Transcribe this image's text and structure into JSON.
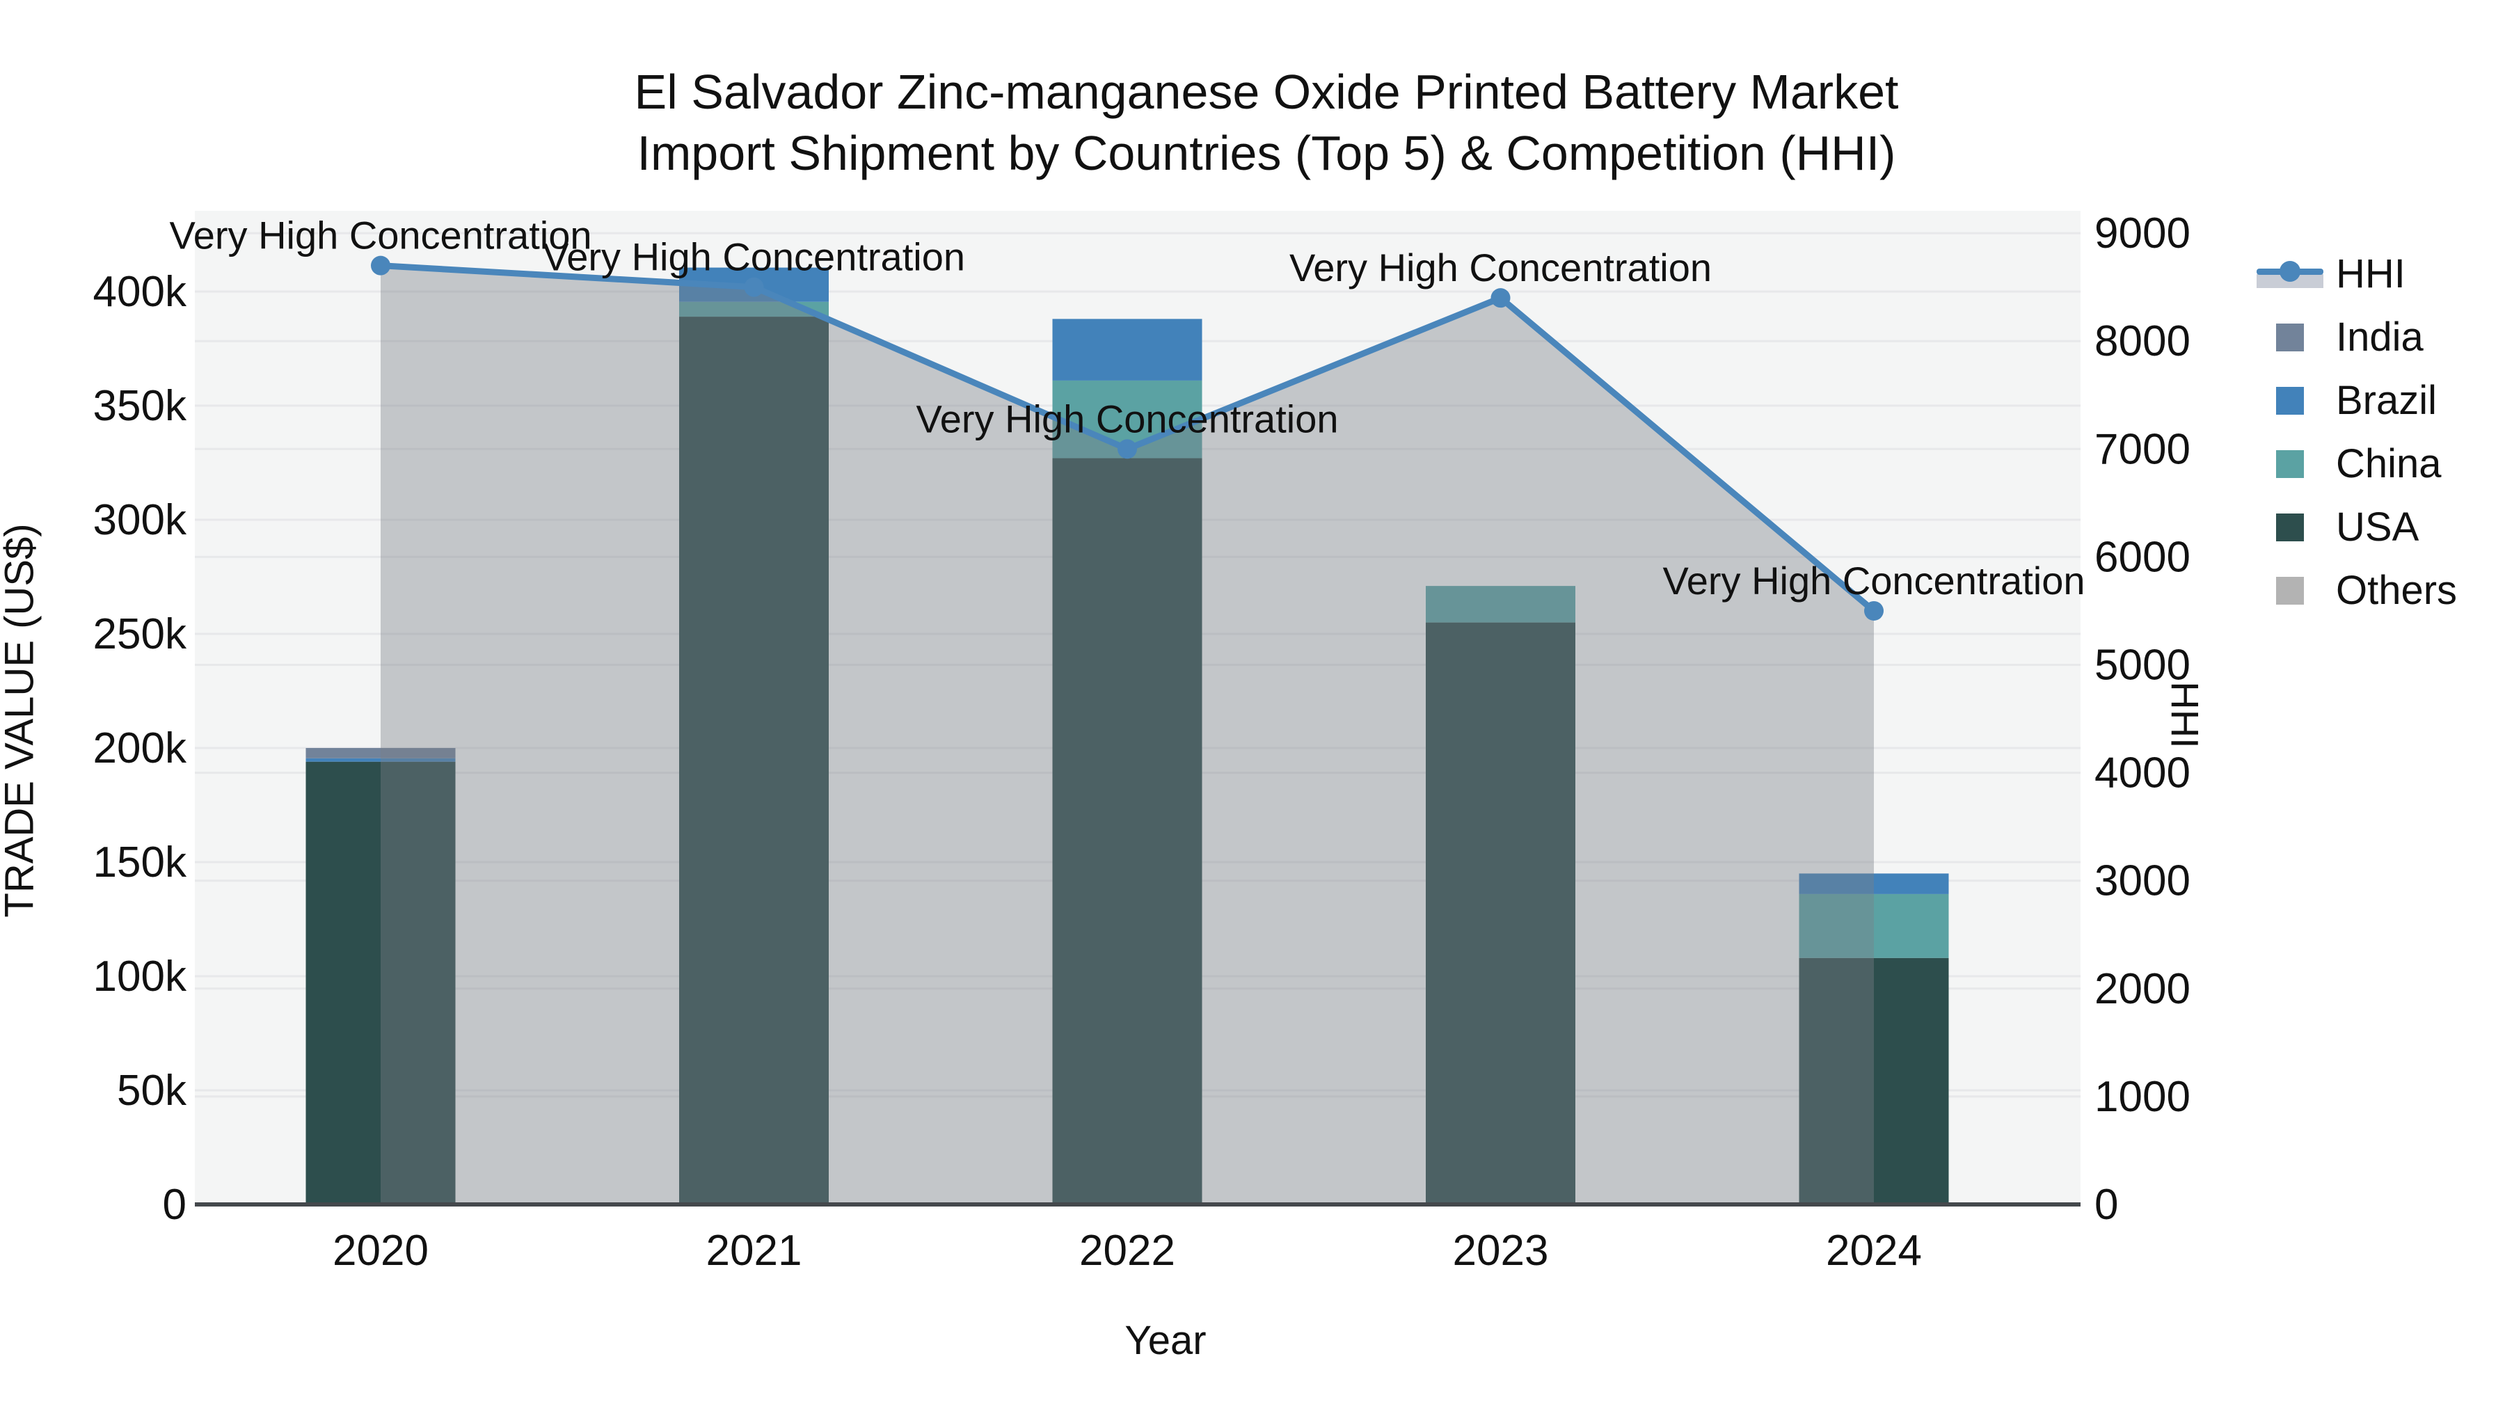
{
  "title": {
    "line1": "El Salvador Zinc-manganese Oxide Printed Battery Market",
    "line2": "Import Shipment by Countries (Top 5) & Competition (HHI)"
  },
  "axes": {
    "x": {
      "title": "Year",
      "tick_labels": [
        "2020",
        "2021",
        "2022",
        "2023",
        "2024"
      ]
    },
    "y_left": {
      "title": "TRADE VALUE (US$)",
      "tick_labels": [
        "0",
        "50k",
        "100k",
        "150k",
        "200k",
        "250k",
        "300k",
        "350k",
        "400k"
      ],
      "tick_step": 50000
    },
    "y_right": {
      "title": "HHI",
      "tick_labels": [
        "0",
        "1000",
        "2000",
        "3000",
        "4000",
        "5000",
        "6000",
        "7000",
        "8000",
        "9000"
      ],
      "tick_step": 1000
    }
  },
  "chart_data": {
    "type": "bar+line",
    "categories": [
      "2020",
      "2021",
      "2022",
      "2023",
      "2024"
    ],
    "bar_unit": "US$",
    "series": [
      {
        "name": "USA",
        "color": "#2d4e4d",
        "values": [
          194000,
          389000,
          327000,
          255000,
          108000
        ]
      },
      {
        "name": "China",
        "color": "#5ba2a3",
        "values": [
          0,
          6500,
          34000,
          16000,
          28000
        ]
      },
      {
        "name": "Brazil",
        "color": "#4282ba",
        "values": [
          1500,
          15000,
          27000,
          0,
          9000
        ]
      },
      {
        "name": "India",
        "color": "#72839a",
        "values": [
          4500,
          0,
          0,
          0,
          0
        ]
      },
      {
        "name": "Others",
        "color": "#b3b3b3",
        "values": [
          0,
          0,
          0,
          0,
          0
        ]
      }
    ],
    "line_series": {
      "name": "HHI",
      "values": [
        8700,
        8500,
        7000,
        8400,
        5500
      ],
      "color": "#4a86bb",
      "fill_color": "rgba(122,128,135,0.40)"
    },
    "annotations": [
      "Very High Concentration",
      "Very High Concentration",
      "Very High Concentration",
      "Very High Concentration",
      "Very High Concentration"
    ],
    "ylim_left": [
      0,
      435000
    ],
    "ylim_right": [
      0,
      9300
    ],
    "legend_position": "right",
    "grid": true
  },
  "legend": {
    "items": [
      {
        "label": "HHI",
        "color": "#4a86bb",
        "type": "line"
      },
      {
        "label": "India",
        "color": "#72839a",
        "type": "swatch"
      },
      {
        "label": "Brazil",
        "color": "#4282ba",
        "type": "swatch"
      },
      {
        "label": "China",
        "color": "#5ba2a3",
        "type": "swatch"
      },
      {
        "label": "USA",
        "color": "#2d4e4d",
        "type": "swatch"
      },
      {
        "label": "Others",
        "color": "#b3b3b3",
        "type": "swatch"
      }
    ]
  },
  "colors": {
    "plot_background": "#f4f5f5",
    "gridline": "#e7e8ea",
    "axis_line": "#44484c",
    "text": "#111111"
  }
}
